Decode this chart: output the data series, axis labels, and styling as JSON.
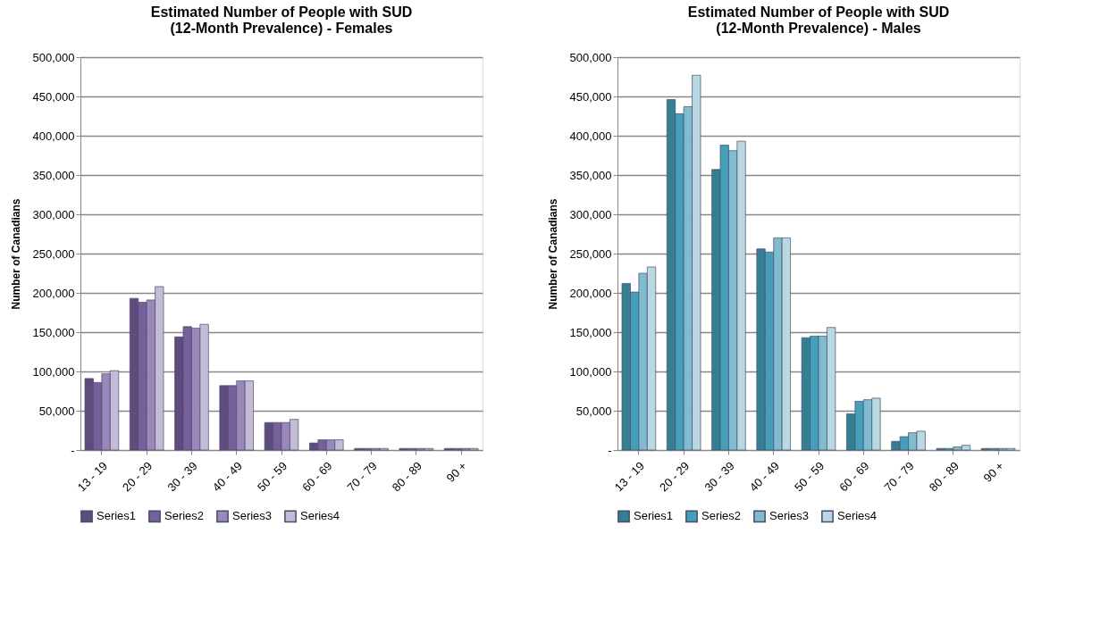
{
  "chart_data": [
    {
      "type": "bar",
      "title": [
        "Estimated Number of People with SUD",
        "(12-Month Prevalence) - Females"
      ],
      "ylabel": "Number of Canadians",
      "categories": [
        "13 - 19",
        "20 - 29",
        "30 - 39",
        "40 - 49",
        "50 - 59",
        "60 - 69",
        "70 - 79",
        "80 - 89",
        "90 +"
      ],
      "series": [
        {
          "name": "Series1",
          "color": "#5f4b7e",
          "values": [
            91000,
            193000,
            144000,
            82000,
            35000,
            9000,
            2000,
            2000,
            2000
          ]
        },
        {
          "name": "Series2",
          "color": "#75609b",
          "values": [
            86000,
            188000,
            157000,
            82000,
            35000,
            13000,
            2000,
            2000,
            2000
          ]
        },
        {
          "name": "Series3",
          "color": "#9a88bb",
          "values": [
            97000,
            191000,
            155000,
            88000,
            35000,
            13000,
            2000,
            2000,
            2000
          ]
        },
        {
          "name": "Series4",
          "color": "#c4bcd6",
          "values": [
            101000,
            208000,
            160000,
            88000,
            39000,
            13000,
            2000,
            2000,
            2000
          ]
        }
      ],
      "ylim": [
        0,
        500000
      ],
      "yticks": [
        {
          "value": 0,
          "label": "-"
        },
        {
          "value": 50000,
          "label": "50,000"
        },
        {
          "value": 100000,
          "label": "100,000"
        },
        {
          "value": 150000,
          "label": "150,000"
        },
        {
          "value": 200000,
          "label": "200,000"
        },
        {
          "value": 250000,
          "label": "250,000"
        },
        {
          "value": 300000,
          "label": "300,000"
        },
        {
          "value": 350000,
          "label": "350,000"
        },
        {
          "value": 400000,
          "label": "400,000"
        },
        {
          "value": 450000,
          "label": "450,000"
        },
        {
          "value": 500000,
          "label": "500,000"
        }
      ],
      "grid": "y",
      "legend": "bottom"
    },
    {
      "type": "bar",
      "title": [
        "Estimated Number of People with SUD",
        "(12-Month Prevalence) - Males"
      ],
      "ylabel": "Number of Canadians",
      "categories": [
        "13 - 19",
        "20 - 29",
        "30 - 39",
        "40 - 49",
        "50 - 59",
        "60 - 69",
        "70 - 79",
        "80 - 89",
        "90 +"
      ],
      "series": [
        {
          "name": "Series1",
          "color": "#357f93",
          "values": [
            212000,
            446000,
            357000,
            256000,
            143000,
            46000,
            11000,
            2000,
            2000
          ]
        },
        {
          "name": "Series2",
          "color": "#43a0b8",
          "values": [
            201000,
            428000,
            388000,
            252000,
            145000,
            62000,
            17000,
            2000,
            2000
          ]
        },
        {
          "name": "Series3",
          "color": "#7fbcd0",
          "values": [
            225000,
            437000,
            381000,
            270000,
            145000,
            64000,
            22000,
            4000,
            2000
          ]
        },
        {
          "name": "Series4",
          "color": "#b9d8e2",
          "values": [
            233000,
            477000,
            393000,
            270000,
            156000,
            66000,
            24000,
            6000,
            2000
          ]
        }
      ],
      "ylim": [
        0,
        500000
      ],
      "yticks": [
        {
          "value": 0,
          "label": "-"
        },
        {
          "value": 50000,
          "label": "50,000"
        },
        {
          "value": 100000,
          "label": "100,000"
        },
        {
          "value": 150000,
          "label": "150,000"
        },
        {
          "value": 200000,
          "label": "200,000"
        },
        {
          "value": 250000,
          "label": "250,000"
        },
        {
          "value": 300000,
          "label": "300,000"
        },
        {
          "value": 350000,
          "label": "350,000"
        },
        {
          "value": 400000,
          "label": "400,000"
        },
        {
          "value": 450000,
          "label": "450,000"
        },
        {
          "value": 500000,
          "label": "500,000"
        }
      ],
      "grid": "y",
      "legend": "bottom"
    }
  ]
}
